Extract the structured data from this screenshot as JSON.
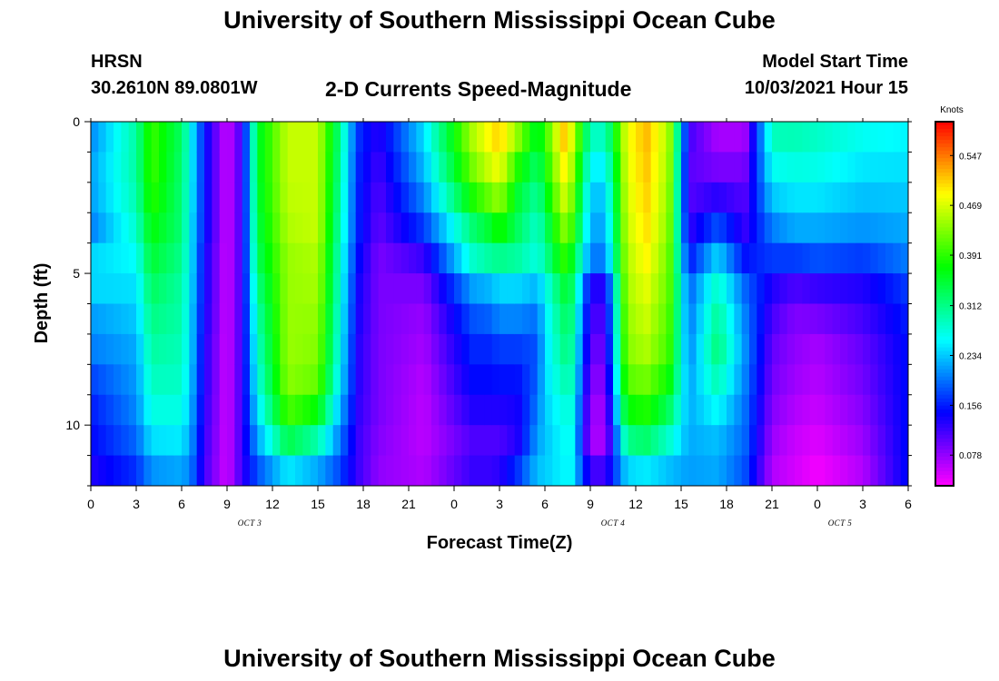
{
  "page": {
    "title_top": "University of Southern Mississippi Ocean Cube",
    "title_bottom": "University of Southern Mississippi Ocean Cube",
    "station": "HRSN",
    "coords": "30.2610N  89.0801W",
    "product": "2-D Currents Speed-Magnitude",
    "model_label": "Model Start Time",
    "model_time": "10/03/2021 Hour 15"
  },
  "chart_data": {
    "type": "heatmap",
    "title": "2-D Currents Speed-Magnitude",
    "xlabel": "Forecast Time(Z)",
    "ylabel": "Depth (ft)",
    "x_tick_labels": [
      "0",
      "3",
      "6",
      "9",
      "12",
      "15",
      "18",
      "21",
      "0",
      "3",
      "6",
      "9",
      "12",
      "15",
      "18",
      "21",
      "0",
      "3",
      "6"
    ],
    "date_labels": [
      {
        "label": "OCT 3",
        "at_tick": 3.5
      },
      {
        "label": "OCT 4",
        "at_tick": 11.5
      },
      {
        "label": "OCT 5",
        "at_tick": 16.5
      }
    ],
    "x_range_hours": [
      0,
      54
    ],
    "y_tick_labels": [
      "0",
      "5",
      "10"
    ],
    "ylim_ft": [
      0,
      12
    ],
    "y_inverted": true,
    "colorbar": {
      "unit": "Knots",
      "tick_labels": [
        "0.547",
        "0.469",
        "0.391",
        "0.312",
        "0.234",
        "0.156",
        "0.078"
      ],
      "tick_values": [
        0.547,
        0.469,
        0.391,
        0.312,
        0.234,
        0.156,
        0.078
      ],
      "vmin": 0.03,
      "vmax": 0.6
    },
    "columns_hours": [
      0,
      3,
      4,
      6,
      6.6,
      7.5,
      9,
      10,
      11,
      13,
      15,
      16.3,
      17.6,
      19,
      22,
      25.2,
      26.3,
      27,
      28.2,
      29.5,
      30,
      31.2,
      31.8,
      33,
      34,
      35.4,
      36.7,
      38.2,
      39.5,
      41.4,
      43.2,
      45,
      46.5,
      48,
      51,
      54
    ],
    "depth_ft": [
      0,
      2,
      3.5,
      4.5,
      5,
      6,
      7.5,
      9,
      10,
      11,
      12
    ],
    "values": [
      [
        0.2,
        0.22,
        0.2,
        0.24,
        0.26,
        0.22,
        0.2,
        0.16,
        0.15,
        0.14,
        0.12
      ],
      [
        0.3,
        0.3,
        0.28,
        0.26,
        0.25,
        0.24,
        0.22,
        0.21,
        0.2,
        0.18,
        0.15
      ],
      [
        0.4,
        0.4,
        0.37,
        0.35,
        0.34,
        0.32,
        0.3,
        0.28,
        0.26,
        0.23,
        0.19
      ],
      [
        0.33,
        0.32,
        0.32,
        0.31,
        0.3,
        0.3,
        0.29,
        0.28,
        0.26,
        0.24,
        0.2
      ],
      [
        0.26,
        0.26,
        0.25,
        0.25,
        0.25,
        0.24,
        0.24,
        0.23,
        0.22,
        0.21,
        0.19
      ],
      [
        0.15,
        0.15,
        0.15,
        0.14,
        0.14,
        0.14,
        0.13,
        0.13,
        0.12,
        0.12,
        0.11
      ],
      [
        0.05,
        0.05,
        0.05,
        0.05,
        0.05,
        0.05,
        0.05,
        0.05,
        0.05,
        0.05,
        0.05
      ],
      [
        0.12,
        0.12,
        0.12,
        0.12,
        0.12,
        0.12,
        0.12,
        0.12,
        0.12,
        0.12,
        0.12
      ],
      [
        0.35,
        0.35,
        0.34,
        0.33,
        0.32,
        0.3,
        0.28,
        0.26,
        0.23,
        0.2,
        0.16
      ],
      [
        0.46,
        0.46,
        0.45,
        0.44,
        0.44,
        0.44,
        0.44,
        0.43,
        0.38,
        0.3,
        0.2
      ],
      [
        0.46,
        0.46,
        0.46,
        0.45,
        0.45,
        0.44,
        0.43,
        0.41,
        0.33,
        0.26,
        0.18
      ],
      [
        0.33,
        0.32,
        0.31,
        0.3,
        0.3,
        0.29,
        0.28,
        0.26,
        0.22,
        0.2,
        0.16
      ],
      [
        0.17,
        0.16,
        0.16,
        0.15,
        0.14,
        0.14,
        0.13,
        0.13,
        0.12,
        0.12,
        0.12
      ],
      [
        0.13,
        0.11,
        0.1,
        0.09,
        0.09,
        0.09,
        0.09,
        0.09,
        0.09,
        0.08,
        0.08
      ],
      [
        0.25,
        0.22,
        0.17,
        0.12,
        0.1,
        0.08,
        0.07,
        0.06,
        0.06,
        0.06,
        0.07
      ],
      [
        0.46,
        0.41,
        0.32,
        0.28,
        0.24,
        0.19,
        0.16,
        0.14,
        0.12,
        0.1,
        0.14
      ],
      [
        0.5,
        0.45,
        0.35,
        0.3,
        0.25,
        0.2,
        0.16,
        0.14,
        0.12,
        0.1,
        0.14
      ],
      [
        0.52,
        0.47,
        0.38,
        0.31,
        0.26,
        0.22,
        0.17,
        0.14,
        0.12,
        0.1,
        0.15
      ],
      [
        0.46,
        0.36,
        0.33,
        0.3,
        0.26,
        0.22,
        0.17,
        0.14,
        0.13,
        0.13,
        0.2
      ],
      [
        0.36,
        0.31,
        0.28,
        0.27,
        0.25,
        0.2,
        0.18,
        0.19,
        0.21,
        0.22,
        0.24
      ],
      [
        0.4,
        0.36,
        0.32,
        0.3,
        0.27,
        0.25,
        0.24,
        0.24,
        0.23,
        0.23,
        0.24
      ],
      [
        0.52,
        0.48,
        0.43,
        0.39,
        0.36,
        0.33,
        0.31,
        0.28,
        0.26,
        0.26,
        0.25
      ],
      [
        0.48,
        0.44,
        0.4,
        0.36,
        0.34,
        0.32,
        0.3,
        0.28,
        0.26,
        0.26,
        0.25
      ],
      [
        0.3,
        0.24,
        0.22,
        0.2,
        0.14,
        0.12,
        0.1,
        0.08,
        0.07,
        0.07,
        0.16
      ],
      [
        0.3,
        0.24,
        0.22,
        0.2,
        0.14,
        0.12,
        0.1,
        0.08,
        0.07,
        0.07,
        0.16
      ],
      [
        0.48,
        0.47,
        0.46,
        0.45,
        0.45,
        0.44,
        0.43,
        0.4,
        0.34,
        0.28,
        0.2
      ],
      [
        0.52,
        0.51,
        0.5,
        0.49,
        0.48,
        0.47,
        0.45,
        0.41,
        0.36,
        0.29,
        0.21
      ],
      [
        0.45,
        0.44,
        0.43,
        0.42,
        0.42,
        0.41,
        0.4,
        0.36,
        0.3,
        0.26,
        0.2
      ],
      [
        0.12,
        0.1,
        0.12,
        0.15,
        0.18,
        0.19,
        0.2,
        0.22,
        0.22,
        0.22,
        0.21
      ],
      [
        0.06,
        0.1,
        0.18,
        0.24,
        0.27,
        0.3,
        0.32,
        0.28,
        0.24,
        0.22,
        0.22
      ],
      [
        0.06,
        0.1,
        0.12,
        0.15,
        0.18,
        0.2,
        0.21,
        0.2,
        0.19,
        0.19,
        0.17
      ],
      [
        0.3,
        0.25,
        0.2,
        0.17,
        0.14,
        0.12,
        0.1,
        0.09,
        0.08,
        0.07,
        0.06
      ],
      [
        0.3,
        0.26,
        0.22,
        0.17,
        0.13,
        0.09,
        0.08,
        0.07,
        0.06,
        0.05,
        0.05
      ],
      [
        0.29,
        0.26,
        0.22,
        0.18,
        0.14,
        0.1,
        0.07,
        0.06,
        0.05,
        0.04,
        0.03
      ],
      [
        0.27,
        0.24,
        0.21,
        0.17,
        0.14,
        0.12,
        0.1,
        0.09,
        0.08,
        0.07,
        0.06
      ],
      [
        0.26,
        0.24,
        0.22,
        0.2,
        0.18,
        0.16,
        0.15,
        0.15,
        0.15,
        0.15,
        0.15
      ]
    ]
  }
}
